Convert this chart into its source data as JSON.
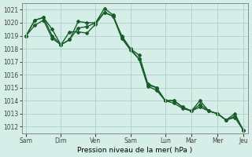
{
  "background_color": "#d6eee8",
  "grid_color": "#b0d4cc",
  "line_color": "#1a5c2a",
  "xlabel": "Pression niveau de la mer( hPa )",
  "ylim": [
    1011.5,
    1021.5
  ],
  "yticks": [
    1012,
    1013,
    1014,
    1015,
    1016,
    1017,
    1018,
    1019,
    1020,
    1021
  ],
  "xtick_labels": [
    "Sam",
    "Dim",
    "Ven",
    "Sam",
    "Lun",
    "Mar",
    "Mer",
    "Jeu"
  ],
  "series": [
    [
      1019.0,
      1020.2,
      1020.4,
      1019.5,
      1018.3,
      1018.7,
      1020.1,
      1020.0,
      1020.0,
      1021.1,
      1020.6,
      1018.9,
      1018.0,
      1017.5,
      1015.3,
      1015.0,
      1014.0,
      1014.0,
      1013.5,
      1013.2,
      1014.0,
      1013.2,
      1013.0,
      1012.5,
      1013.0,
      1011.7
    ],
    [
      1019.0,
      1020.2,
      1020.4,
      1019.0,
      1018.3,
      1018.7,
      1019.6,
      1019.7,
      1020.0,
      1020.8,
      1020.5,
      1019.0,
      1018.0,
      1017.2,
      1015.2,
      1015.0,
      1014.0,
      1014.0,
      1013.5,
      1013.2,
      1013.7,
      1013.2,
      1013.0,
      1012.5,
      1012.8,
      1011.7
    ],
    [
      1019.0,
      1019.8,
      1020.2,
      1018.8,
      1018.3,
      1019.3,
      1019.3,
      1019.2,
      1019.9,
      1020.8,
      1020.5,
      1018.8,
      1017.9,
      1017.2,
      1015.1,
      1014.8,
      1014.0,
      1013.8,
      1013.4,
      1013.2,
      1013.5,
      1013.2,
      1013.0,
      1012.5,
      1012.7,
      1011.7
    ]
  ],
  "n_points": 26,
  "day_boundaries": [
    0,
    4,
    8,
    12,
    16,
    19,
    22,
    25
  ],
  "marker": "D",
  "markersize": 2.0,
  "linewidth": 1.0
}
